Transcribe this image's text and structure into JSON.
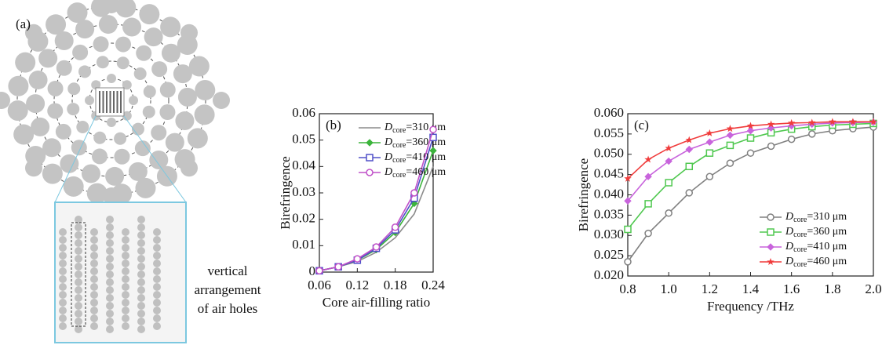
{
  "panel_a": {
    "label": "(a)",
    "caption": [
      "vertical",
      "arrangement",
      "of air holes"
    ]
  },
  "chart_data": [
    {
      "type": "line",
      "panel_label": "(b)",
      "x_label": "Core air-filling ratio",
      "y_label": "Birefringence",
      "x": [
        0.06,
        0.09,
        0.12,
        0.15,
        0.18,
        0.21,
        0.24
      ],
      "xlim": [
        0.06,
        0.24
      ],
      "xticks": [
        0.06,
        0.12,
        0.18,
        0.24
      ],
      "ylim": [
        0,
        0.06
      ],
      "yticks": [
        0,
        0.01,
        0.02,
        0.03,
        0.04,
        0.05,
        0.06
      ],
      "legend": "upper left",
      "series": [
        {
          "name": "Dcore=310 μm",
          "color": "#8c8c8c",
          "marker": "none",
          "values": [
            0.0005,
            0.002,
            0.004,
            0.0075,
            0.013,
            0.022,
            0.04
          ]
        },
        {
          "name": "Dcore=360 μm",
          "color": "#3cb43c",
          "marker": "diamond",
          "values": [
            0.0005,
            0.002,
            0.0045,
            0.0085,
            0.015,
            0.026,
            0.046
          ]
        },
        {
          "name": "Dcore=410 μm",
          "color": "#5050c8",
          "marker": "square",
          "values": [
            0.0005,
            0.002,
            0.0045,
            0.009,
            0.016,
            0.028,
            0.051
          ]
        },
        {
          "name": "Dcore=460 μm",
          "color": "#c050c8",
          "marker": "circle",
          "values": [
            0.0005,
            0.002,
            0.005,
            0.0095,
            0.017,
            0.03,
            0.054
          ]
        }
      ]
    },
    {
      "type": "line",
      "panel_label": "(c)",
      "x_label": "Frequency /THz",
      "y_label": "Birefringence",
      "x": [
        0.8,
        0.9,
        1.0,
        1.1,
        1.2,
        1.3,
        1.4,
        1.5,
        1.6,
        1.7,
        1.8,
        1.9,
        2.0
      ],
      "xlim": [
        0.8,
        2.0
      ],
      "xticks": [
        0.8,
        {
          "value": 1,
          "label": "1.0"
        },
        1.2,
        1.4,
        1.6,
        1.8,
        {
          "value": 2,
          "label": "2.0"
        }
      ],
      "ylim": [
        0.02,
        0.06
      ],
      "yticks": [
        {
          "value": 0.02,
          "label": "0.020"
        },
        0.025,
        {
          "value": 0.03,
          "label": "0.030"
        },
        0.035,
        {
          "value": 0.04,
          "label": "0.040"
        },
        0.045,
        {
          "value": 0.05,
          "label": "0.050"
        },
        0.055,
        {
          "value": 0.06,
          "label": "0.060"
        }
      ],
      "legend": "lower right",
      "series": [
        {
          "name": "Dcore=310 μm",
          "color": "#808080",
          "marker": "circle",
          "values": [
            0.0235,
            0.0305,
            0.0355,
            0.0405,
            0.0445,
            0.0478,
            0.0503,
            0.052,
            0.0537,
            0.055,
            0.0558,
            0.0563,
            0.0567
          ]
        },
        {
          "name": "Dcore=360 μm",
          "color": "#50c850",
          "marker": "square",
          "values": [
            0.0315,
            0.0378,
            0.043,
            0.047,
            0.0503,
            0.0522,
            0.054,
            0.0553,
            0.0562,
            0.0568,
            0.0572,
            0.0574,
            0.0576
          ]
        },
        {
          "name": "Dcore=410 μm",
          "color": "#c864dc",
          "marker": "diamond",
          "values": [
            0.0385,
            0.0445,
            0.0483,
            0.0512,
            0.053,
            0.0547,
            0.0558,
            0.0565,
            0.057,
            0.0574,
            0.0577,
            0.0578,
            0.0579
          ]
        },
        {
          "name": "Dcore=460 μm",
          "color": "#f03c3c",
          "marker": "star",
          "values": [
            0.044,
            0.0487,
            0.0515,
            0.0535,
            0.0552,
            0.0563,
            0.057,
            0.0574,
            0.0577,
            0.0578,
            0.058,
            0.058,
            0.058
          ]
        }
      ]
    }
  ]
}
